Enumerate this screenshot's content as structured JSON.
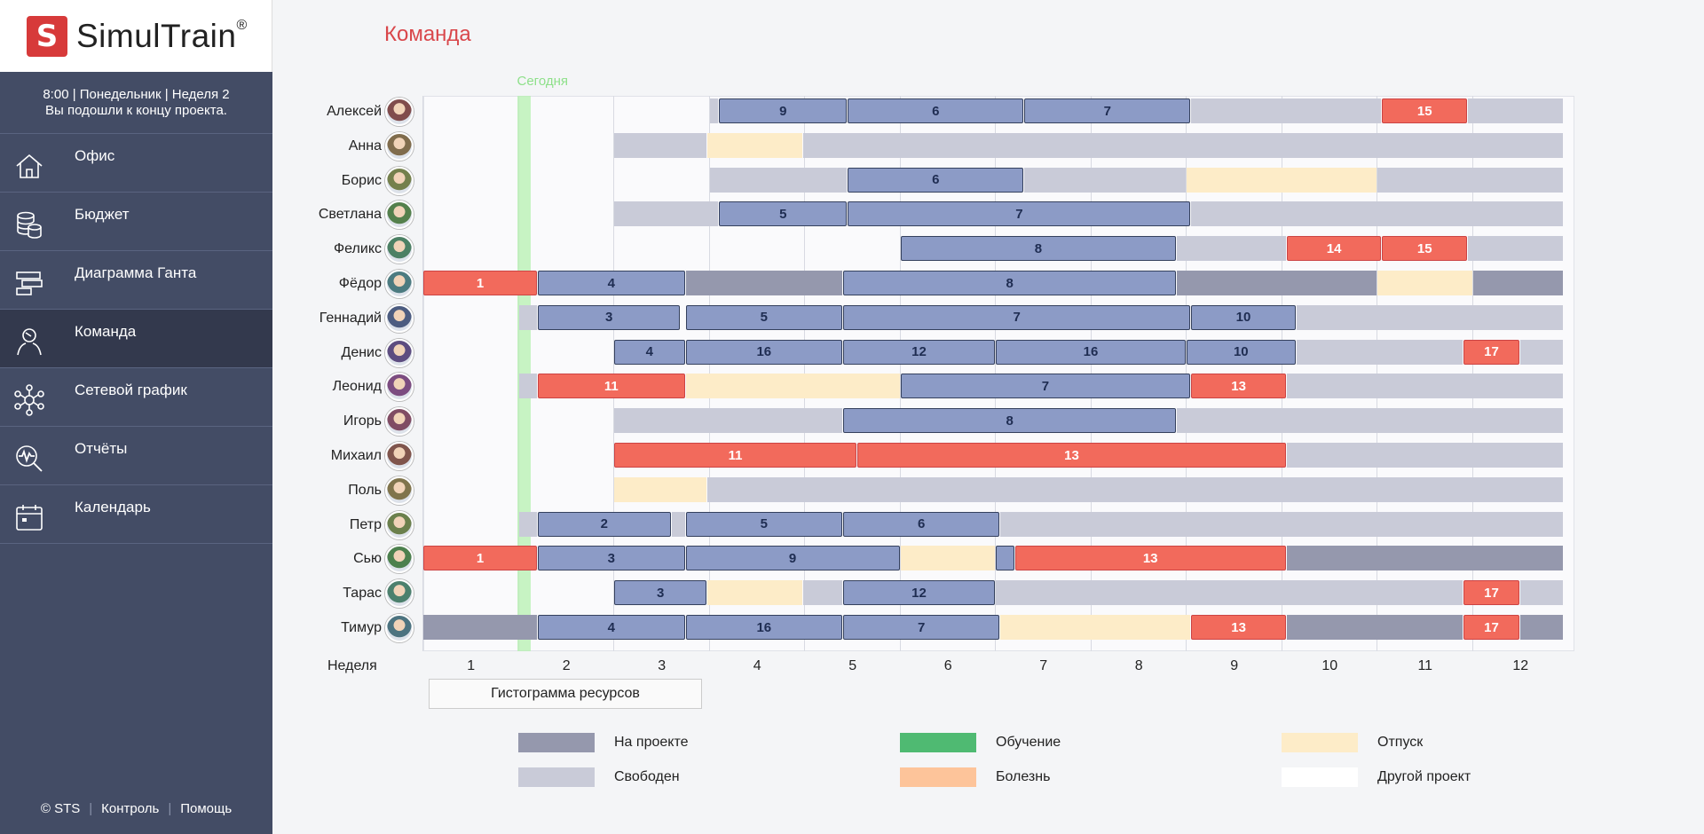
{
  "app": {
    "logo_letter": "S",
    "logo_name": "SimulTrain",
    "logo_reg": "®"
  },
  "status": {
    "line1": "8:00  |  Понедельник  |  Неделя 2",
    "line2": "Вы подошли к концу проекта."
  },
  "nav": [
    {
      "label": "Офис",
      "icon": "home-icon"
    },
    {
      "label": "Бюджет",
      "icon": "coins-icon"
    },
    {
      "label": "Диаграмма Ганта",
      "icon": "gantt-icon"
    },
    {
      "label": "Команда",
      "icon": "team-icon",
      "active": true
    },
    {
      "label": "Сетевой график",
      "icon": "network-icon"
    },
    {
      "label": "Отчёты",
      "icon": "report-icon"
    },
    {
      "label": "Календарь",
      "icon": "calendar-icon"
    }
  ],
  "footer": {
    "copyright": "© STS",
    "control": "Контроль",
    "help": "Помощь"
  },
  "page_title": "Команда",
  "today_label": "Сегодня",
  "week_label": "Неделя",
  "weeks": [
    "1",
    "2",
    "3",
    "4",
    "5",
    "6",
    "7",
    "8",
    "9",
    "10",
    "11",
    "12"
  ],
  "histogram_button": "Гистограмма ресурсов",
  "legend": [
    {
      "label": "На проекте",
      "color": "#9598ad"
    },
    {
      "label": "Обучение",
      "color": "#4fba72"
    },
    {
      "label": "Отпуск",
      "color": "#fdecc8"
    },
    {
      "label": "Свободен",
      "color": "#c9cbd8"
    },
    {
      "label": "Болезнь",
      "color": "#fdc49a"
    },
    {
      "label": "Другой проект",
      "color": "#ffffff"
    }
  ],
  "colors": {
    "task": "#8c9bc6",
    "critical": "#f26a5c",
    "free": "#c9cbd8",
    "project": "#9598ad",
    "vacation": "#fdecc8",
    "accent": "#d9474b",
    "sidebar": "#434c65"
  },
  "chart_data": {
    "type": "gantt",
    "x_unit": "week",
    "rows": [
      {
        "name": "Алексей",
        "bars": [
          {
            "s": 4.0,
            "e": 4.1,
            "k": "free"
          },
          {
            "s": 4.1,
            "e": 5.45,
            "k": "task",
            "t": "9"
          },
          {
            "s": 5.45,
            "e": 7.3,
            "k": "task",
            "t": "6"
          },
          {
            "s": 7.3,
            "e": 9.05,
            "k": "task",
            "t": "7"
          },
          {
            "s": 9.05,
            "e": 11.05,
            "k": "free"
          },
          {
            "s": 11.05,
            "e": 11.95,
            "k": "crit",
            "t": "15"
          },
          {
            "s": 11.95,
            "e": 12.95,
            "k": "free"
          }
        ]
      },
      {
        "name": "Анна",
        "bars": [
          {
            "s": 3.0,
            "e": 3.98,
            "k": "free"
          },
          {
            "s": 3.98,
            "e": 4.98,
            "k": "vac"
          },
          {
            "s": 4.98,
            "e": 12.95,
            "k": "free"
          }
        ]
      },
      {
        "name": "Борис",
        "bars": [
          {
            "s": 4.0,
            "e": 5.45,
            "k": "free"
          },
          {
            "s": 5.45,
            "e": 7.3,
            "k": "task",
            "t": "6"
          },
          {
            "s": 7.3,
            "e": 9.0,
            "k": "free"
          },
          {
            "s": 9.0,
            "e": 11.0,
            "k": "vac"
          },
          {
            "s": 11.0,
            "e": 12.95,
            "k": "free"
          }
        ]
      },
      {
        "name": "Светлана",
        "bars": [
          {
            "s": 3.0,
            "e": 4.1,
            "k": "free"
          },
          {
            "s": 4.1,
            "e": 5.45,
            "k": "task",
            "t": "5"
          },
          {
            "s": 5.45,
            "e": 9.05,
            "k": "task",
            "t": "7"
          },
          {
            "s": 9.05,
            "e": 12.95,
            "k": "free"
          }
        ]
      },
      {
        "name": "Феликс",
        "bars": [
          {
            "s": 6.0,
            "e": 8.9,
            "k": "task",
            "t": "8"
          },
          {
            "s": 8.9,
            "e": 10.05,
            "k": "free"
          },
          {
            "s": 10.05,
            "e": 11.05,
            "k": "crit",
            "t": "14"
          },
          {
            "s": 11.05,
            "e": 11.95,
            "k": "crit",
            "t": "15"
          },
          {
            "s": 11.95,
            "e": 12.95,
            "k": "free"
          }
        ]
      },
      {
        "name": "Фёдор",
        "bars": [
          {
            "s": 1.0,
            "e": 2.2,
            "k": "crit",
            "t": "1"
          },
          {
            "s": 2.2,
            "e": 3.75,
            "k": "task",
            "t": "4"
          },
          {
            "s": 3.75,
            "e": 5.4,
            "k": "proj"
          },
          {
            "s": 5.4,
            "e": 8.9,
            "k": "task",
            "t": "8"
          },
          {
            "s": 8.9,
            "e": 11.0,
            "k": "proj"
          },
          {
            "s": 11.0,
            "e": 12.0,
            "k": "vac"
          },
          {
            "s": 12.0,
            "e": 12.95,
            "k": "proj"
          }
        ]
      },
      {
        "name": "Геннадий",
        "bars": [
          {
            "s": 2.0,
            "e": 2.2,
            "k": "free"
          },
          {
            "s": 2.2,
            "e": 3.7,
            "k": "task",
            "t": "3"
          },
          {
            "s": 3.75,
            "e": 5.4,
            "k": "task",
            "t": "5"
          },
          {
            "s": 5.4,
            "e": 9.05,
            "k": "task",
            "t": "7"
          },
          {
            "s": 9.05,
            "e": 10.15,
            "k": "task",
            "t": "10"
          },
          {
            "s": 10.15,
            "e": 12.95,
            "k": "free"
          }
        ]
      },
      {
        "name": "Денис",
        "bars": [
          {
            "s": 3.0,
            "e": 3.75,
            "k": "task",
            "t": "4"
          },
          {
            "s": 3.75,
            "e": 5.4,
            "k": "task",
            "t": "16"
          },
          {
            "s": 5.4,
            "e": 7.0,
            "k": "task",
            "t": "12"
          },
          {
            "s": 7.0,
            "e": 9.0,
            "k": "task",
            "t": "16"
          },
          {
            "s": 9.0,
            "e": 10.15,
            "k": "task",
            "t": "10"
          },
          {
            "s": 10.15,
            "e": 11.9,
            "k": "free"
          },
          {
            "s": 11.9,
            "e": 12.5,
            "k": "crit",
            "t": "17"
          },
          {
            "s": 12.5,
            "e": 12.95,
            "k": "free"
          }
        ]
      },
      {
        "name": "Леонид",
        "bars": [
          {
            "s": 2.0,
            "e": 2.2,
            "k": "free"
          },
          {
            "s": 2.2,
            "e": 3.75,
            "k": "crit",
            "t": "11"
          },
          {
            "s": 3.75,
            "e": 6.0,
            "k": "vac"
          },
          {
            "s": 6.0,
            "e": 9.05,
            "k": "task",
            "t": "7"
          },
          {
            "s": 9.05,
            "e": 10.05,
            "k": "crit",
            "t": "13"
          },
          {
            "s": 10.05,
            "e": 12.95,
            "k": "free"
          }
        ]
      },
      {
        "name": "Игорь",
        "bars": [
          {
            "s": 3.0,
            "e": 5.4,
            "k": "free"
          },
          {
            "s": 5.4,
            "e": 8.9,
            "k": "task",
            "t": "8"
          },
          {
            "s": 8.9,
            "e": 12.95,
            "k": "free"
          }
        ]
      },
      {
        "name": "Михаил",
        "bars": [
          {
            "s": 3.0,
            "e": 5.55,
            "k": "crit",
            "t": "11"
          },
          {
            "s": 5.55,
            "e": 10.05,
            "k": "crit",
            "t": "13"
          },
          {
            "s": 10.05,
            "e": 12.95,
            "k": "free"
          }
        ]
      },
      {
        "name": "Поль",
        "bars": [
          {
            "s": 3.0,
            "e": 3.98,
            "k": "vac"
          },
          {
            "s": 3.98,
            "e": 12.95,
            "k": "free"
          }
        ]
      },
      {
        "name": "Петр",
        "bars": [
          {
            "s": 2.0,
            "e": 2.2,
            "k": "free"
          },
          {
            "s": 2.2,
            "e": 3.6,
            "k": "task",
            "t": "2"
          },
          {
            "s": 3.6,
            "e": 3.75,
            "k": "free"
          },
          {
            "s": 3.75,
            "e": 5.4,
            "k": "task",
            "t": "5"
          },
          {
            "s": 5.4,
            "e": 7.05,
            "k": "task",
            "t": "6"
          },
          {
            "s": 7.05,
            "e": 12.95,
            "k": "free"
          }
        ]
      },
      {
        "name": "Сью",
        "bars": [
          {
            "s": 1.0,
            "e": 2.2,
            "k": "crit",
            "t": "1"
          },
          {
            "s": 2.2,
            "e": 3.75,
            "k": "task",
            "t": "3"
          },
          {
            "s": 3.75,
            "e": 6.0,
            "k": "task",
            "t": "9"
          },
          {
            "s": 6.0,
            "e": 7.0,
            "k": "vac"
          },
          {
            "s": 7.0,
            "e": 7.2,
            "k": "task"
          },
          {
            "s": 7.2,
            "e": 10.05,
            "k": "crit",
            "t": "13"
          },
          {
            "s": 10.05,
            "e": 12.95,
            "k": "proj"
          }
        ]
      },
      {
        "name": "Тарас",
        "bars": [
          {
            "s": 3.0,
            "e": 3.98,
            "k": "task",
            "t": "3"
          },
          {
            "s": 3.98,
            "e": 4.98,
            "k": "vac"
          },
          {
            "s": 4.98,
            "e": 5.4,
            "k": "free"
          },
          {
            "s": 5.4,
            "e": 7.0,
            "k": "task",
            "t": "12"
          },
          {
            "s": 7.0,
            "e": 11.9,
            "k": "free"
          },
          {
            "s": 11.9,
            "e": 12.5,
            "k": "crit",
            "t": "17"
          },
          {
            "s": 12.5,
            "e": 12.95,
            "k": "free"
          }
        ]
      },
      {
        "name": "Тимур",
        "bars": [
          {
            "s": 1.0,
            "e": 2.2,
            "k": "proj"
          },
          {
            "s": 2.2,
            "e": 3.75,
            "k": "task",
            "t": "4"
          },
          {
            "s": 3.75,
            "e": 5.4,
            "k": "task",
            "t": "16"
          },
          {
            "s": 5.4,
            "e": 7.05,
            "k": "task",
            "t": "7"
          },
          {
            "s": 7.05,
            "e": 9.05,
            "k": "vac"
          },
          {
            "s": 9.05,
            "e": 10.05,
            "k": "crit",
            "t": "13"
          },
          {
            "s": 10.05,
            "e": 11.9,
            "k": "proj"
          },
          {
            "s": 11.9,
            "e": 12.5,
            "k": "crit",
            "t": "17"
          },
          {
            "s": 12.5,
            "e": 12.95,
            "k": "proj"
          }
        ]
      }
    ]
  }
}
